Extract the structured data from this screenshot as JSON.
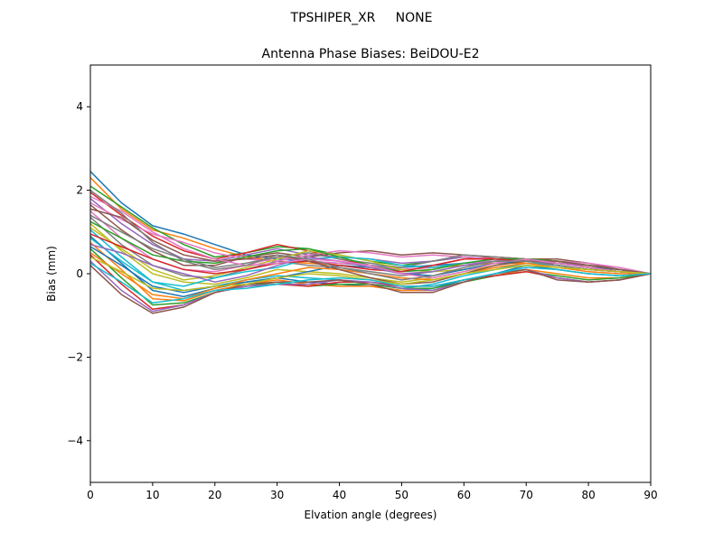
{
  "figure": {
    "suptitle": "TPSHIPER_XR     NONE"
  },
  "chart_data": {
    "type": "line",
    "title": "Antenna Phase Biases: BeiDOU-E2",
    "xlabel": "Elvation angle (degrees)",
    "ylabel": "Bias (mm)",
    "xlim": [
      0,
      90
    ],
    "ylim": [
      -5,
      5
    ],
    "xticks": [
      0,
      10,
      20,
      30,
      40,
      50,
      60,
      70,
      80,
      90
    ],
    "xtick_labels": [
      "0",
      "10",
      "20",
      "30",
      "40",
      "50",
      "60",
      "70",
      "80",
      "90"
    ],
    "yticks": [
      -4,
      -2,
      0,
      2,
      4
    ],
    "ytick_labels": [
      "−4",
      "−2",
      "0",
      "2",
      "4"
    ],
    "grid": false,
    "x": [
      0,
      5,
      10,
      15,
      20,
      25,
      30,
      35,
      40,
      45,
      50,
      55,
      60,
      65,
      70,
      75,
      80,
      85,
      90
    ],
    "colors": [
      "#1f77b4",
      "#ff7f0e",
      "#2ca02c",
      "#d62728",
      "#9467bd",
      "#8c564b",
      "#e377c2",
      "#7f7f7f",
      "#bcbd22",
      "#17becf"
    ],
    "series": [
      {
        "values": [
          2.45,
          1.7,
          1.15,
          0.95,
          0.7,
          0.45,
          0.35,
          0.3,
          0.25,
          0.2,
          0.15,
          0.2,
          0.25,
          0.3,
          0.3,
          0.25,
          0.15,
          0.1,
          0.0
        ]
      },
      {
        "values": [
          2.3,
          1.55,
          1.05,
          0.85,
          0.6,
          0.4,
          0.3,
          0.25,
          0.2,
          0.15,
          0.1,
          0.15,
          0.2,
          0.25,
          0.25,
          0.2,
          0.1,
          0.05,
          0.0
        ]
      },
      {
        "values": [
          2.1,
          1.6,
          1.1,
          0.7,
          0.4,
          0.5,
          0.65,
          0.6,
          0.45,
          0.3,
          0.2,
          0.3,
          0.4,
          0.35,
          0.3,
          0.25,
          0.15,
          0.05,
          0.0
        ]
      },
      {
        "values": [
          1.95,
          1.4,
          0.9,
          0.55,
          0.35,
          0.5,
          0.7,
          0.55,
          0.35,
          0.2,
          0.05,
          0.2,
          0.35,
          0.4,
          0.35,
          0.2,
          0.1,
          0.05,
          0.0
        ]
      },
      {
        "values": [
          1.8,
          1.2,
          0.7,
          0.35,
          0.3,
          0.45,
          0.6,
          0.45,
          0.4,
          0.35,
          0.25,
          0.3,
          0.4,
          0.35,
          0.3,
          0.3,
          0.2,
          0.1,
          0.0
        ]
      },
      {
        "values": [
          1.65,
          1.05,
          0.55,
          0.2,
          0.2,
          0.4,
          0.5,
          0.4,
          0.5,
          0.55,
          0.45,
          0.5,
          0.45,
          0.4,
          0.35,
          0.35,
          0.25,
          0.1,
          0.0
        ]
      },
      {
        "values": [
          1.5,
          0.85,
          0.35,
          0.1,
          0.05,
          0.2,
          0.4,
          0.3,
          0.25,
          0.2,
          0.1,
          0.15,
          0.25,
          0.3,
          0.35,
          0.3,
          0.2,
          0.1,
          0.0
        ]
      },
      {
        "values": [
          1.35,
          0.7,
          0.2,
          -0.05,
          -0.1,
          0.1,
          0.3,
          0.2,
          0.15,
          0.05,
          -0.05,
          0.05,
          0.2,
          0.3,
          0.35,
          0.3,
          0.2,
          0.1,
          0.0
        ]
      },
      {
        "values": [
          1.2,
          0.55,
          0.0,
          -0.2,
          -0.25,
          -0.1,
          0.1,
          0.05,
          0.0,
          -0.1,
          -0.2,
          -0.1,
          0.05,
          0.2,
          0.3,
          0.25,
          0.15,
          0.05,
          0.0
        ]
      },
      {
        "values": [
          1.05,
          0.4,
          -0.2,
          -0.4,
          -0.3,
          -0.15,
          -0.05,
          -0.1,
          -0.15,
          -0.25,
          -0.35,
          -0.25,
          -0.05,
          0.1,
          0.25,
          0.2,
          0.1,
          0.05,
          0.0
        ]
      },
      {
        "values": [
          0.9,
          0.25,
          -0.4,
          -0.55,
          -0.35,
          -0.2,
          -0.1,
          -0.2,
          -0.25,
          -0.3,
          -0.4,
          -0.35,
          -0.15,
          0.0,
          0.2,
          0.1,
          0.0,
          -0.05,
          0.0
        ]
      },
      {
        "values": [
          0.75,
          0.1,
          -0.6,
          -0.65,
          -0.4,
          -0.25,
          -0.15,
          -0.25,
          -0.3,
          -0.3,
          -0.4,
          -0.4,
          -0.2,
          -0.05,
          0.1,
          0.0,
          -0.1,
          -0.1,
          0.0
        ]
      },
      {
        "values": [
          0.6,
          -0.1,
          -0.75,
          -0.7,
          -0.45,
          -0.3,
          -0.2,
          -0.3,
          -0.25,
          -0.25,
          -0.35,
          -0.35,
          -0.2,
          -0.05,
          0.05,
          -0.05,
          -0.15,
          -0.1,
          0.0
        ]
      },
      {
        "values": [
          0.45,
          -0.25,
          -0.85,
          -0.75,
          -0.45,
          -0.3,
          -0.25,
          -0.3,
          -0.2,
          -0.2,
          -0.3,
          -0.3,
          -0.15,
          -0.05,
          0.05,
          -0.1,
          -0.2,
          -0.15,
          0.0
        ]
      },
      {
        "values": [
          0.3,
          -0.4,
          -0.9,
          -0.75,
          -0.45,
          -0.3,
          -0.25,
          -0.25,
          -0.15,
          -0.2,
          -0.35,
          -0.4,
          -0.2,
          0.0,
          0.1,
          -0.1,
          -0.2,
          -0.15,
          0.0
        ]
      },
      {
        "values": [
          0.2,
          -0.5,
          -0.95,
          -0.8,
          -0.45,
          -0.25,
          -0.2,
          -0.2,
          -0.15,
          -0.25,
          -0.45,
          -0.45,
          -0.2,
          0.0,
          0.1,
          -0.15,
          -0.2,
          -0.15,
          0.0
        ]
      },
      {
        "values": [
          1.7,
          1.3,
          0.95,
          0.75,
          0.5,
          0.35,
          0.3,
          0.45,
          0.55,
          0.5,
          0.4,
          0.45,
          0.4,
          0.35,
          0.3,
          0.3,
          0.25,
          0.15,
          0.0
        ]
      },
      {
        "values": [
          1.4,
          1.0,
          0.6,
          0.35,
          0.15,
          0.25,
          0.4,
          0.5,
          0.35,
          0.25,
          0.15,
          0.3,
          0.45,
          0.4,
          0.35,
          0.25,
          0.15,
          0.05,
          0.0
        ]
      },
      {
        "values": [
          1.1,
          0.6,
          0.1,
          -0.15,
          -0.05,
          0.15,
          0.35,
          0.55,
          0.45,
          0.3,
          0.1,
          0.05,
          0.1,
          0.25,
          0.35,
          0.3,
          0.15,
          0.05,
          0.0
        ]
      },
      {
        "values": [
          0.85,
          0.3,
          -0.2,
          -0.3,
          -0.1,
          0.05,
          0.15,
          0.35,
          0.4,
          0.35,
          0.2,
          0.15,
          0.25,
          0.35,
          0.35,
          0.25,
          0.15,
          0.05,
          0.0
        ]
      },
      {
        "values": [
          0.65,
          0.2,
          -0.3,
          -0.45,
          -0.3,
          -0.2,
          -0.1,
          0.05,
          0.2,
          0.15,
          0.0,
          -0.05,
          0.1,
          0.25,
          0.3,
          0.2,
          0.1,
          0.05,
          0.0
        ]
      },
      {
        "values": [
          0.5,
          0.0,
          -0.5,
          -0.6,
          -0.35,
          -0.15,
          0.0,
          0.15,
          0.1,
          0.0,
          -0.1,
          -0.15,
          0.0,
          0.15,
          0.25,
          0.15,
          0.05,
          0.0,
          0.0
        ]
      },
      {
        "values": [
          1.25,
          0.85,
          0.45,
          0.3,
          0.25,
          0.4,
          0.55,
          0.6,
          0.4,
          0.2,
          0.05,
          0.1,
          0.25,
          0.35,
          0.35,
          0.3,
          0.2,
          0.1,
          0.0
        ]
      },
      {
        "values": [
          0.95,
          0.65,
          0.35,
          0.1,
          0.0,
          0.1,
          0.25,
          0.3,
          0.2,
          0.1,
          0.05,
          0.2,
          0.35,
          0.35,
          0.3,
          0.25,
          0.15,
          0.05,
          0.0
        ]
      },
      {
        "values": [
          0.7,
          0.5,
          0.2,
          0.0,
          -0.2,
          -0.05,
          0.2,
          0.4,
          0.3,
          0.15,
          0.0,
          0.05,
          0.2,
          0.3,
          0.3,
          0.25,
          0.2,
          0.1,
          0.0
        ]
      },
      {
        "values": [
          1.55,
          1.35,
          0.8,
          0.45,
          0.3,
          0.35,
          0.45,
          0.3,
          0.1,
          -0.1,
          -0.25,
          -0.2,
          0.0,
          0.2,
          0.3,
          0.3,
          0.2,
          0.1,
          0.0
        ]
      },
      {
        "values": [
          1.85,
          1.5,
          1.0,
          0.6,
          0.35,
          0.2,
          0.25,
          0.35,
          0.3,
          0.2,
          0.0,
          -0.1,
          0.05,
          0.25,
          0.35,
          0.25,
          0.15,
          0.05,
          0.0
        ]
      },
      {
        "values": [
          2.0,
          1.45,
          0.75,
          0.3,
          0.1,
          0.2,
          0.45,
          0.35,
          0.15,
          0.0,
          -0.15,
          -0.05,
          0.15,
          0.3,
          0.3,
          0.2,
          0.1,
          0.05,
          0.0
        ]
      },
      {
        "values": [
          0.4,
          0.05,
          -0.35,
          -0.4,
          -0.3,
          -0.25,
          -0.1,
          0.0,
          -0.05,
          -0.15,
          -0.25,
          -0.15,
          0.0,
          0.1,
          0.2,
          0.15,
          0.1,
          0.05,
          0.0
        ]
      },
      {
        "values": [
          0.25,
          -0.2,
          -0.7,
          -0.6,
          -0.4,
          -0.35,
          -0.25,
          -0.15,
          -0.1,
          -0.15,
          -0.3,
          -0.3,
          -0.15,
          0.0,
          0.15,
          0.1,
          0.0,
          -0.05,
          0.0
        ]
      }
    ]
  }
}
